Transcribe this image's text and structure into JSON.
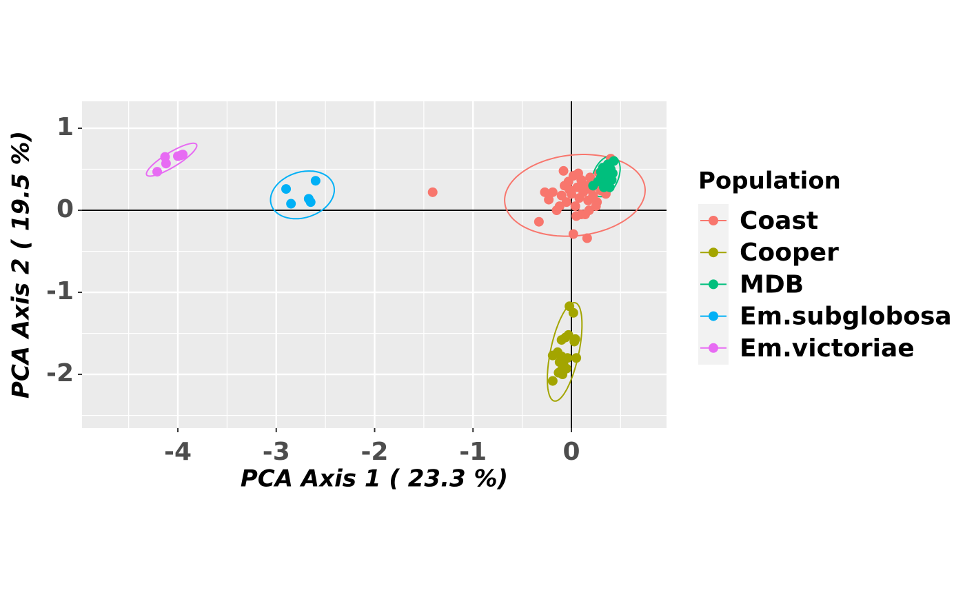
{
  "chart_data": {
    "type": "scatter",
    "x_label": "PCA Axis 1 ( 23.3 %)",
    "y_label": "PCA Axis 2 ( 19.5 %)",
    "legend_title": "Population",
    "xlim": [
      -4.974,
      0.967
    ],
    "ylim": [
      -2.655,
      1.328
    ],
    "xticks": [
      -4,
      -3,
      -2,
      -1,
      0
    ],
    "yticks": [
      -2,
      -1,
      0,
      1
    ],
    "grid": true,
    "series": [
      {
        "name": "Coast",
        "color": "#f8766d",
        "x": [
          -1.41,
          -0.33,
          0.02,
          0.16,
          -0.08,
          -0.27,
          -0.23,
          -0.19,
          -0.12,
          -0.1,
          -0.07,
          -0.05,
          -0.03,
          0,
          0.02,
          0.04,
          0.06,
          0.08,
          0.1,
          0.12,
          0.14,
          0.15,
          0.17,
          0.19,
          0.2,
          0.22,
          0.24,
          0.26,
          0.28,
          0.3,
          0.32,
          0.25,
          0.1,
          -0.15,
          0.05,
          0.35,
          0.4,
          -0.02,
          0.07,
          0.18
        ],
        "y": [
          0.22,
          -0.14,
          -0.29,
          -0.34,
          0.48,
          0.22,
          0.13,
          0.22,
          0.05,
          0.18,
          0.3,
          0.1,
          0.35,
          0.2,
          0.42,
          0.05,
          0.28,
          0.15,
          0.37,
          0.22,
          -0.05,
          0.3,
          0.12,
          0.4,
          0.25,
          0.18,
          0.33,
          0.1,
          0.45,
          0.24,
          0.35,
          0.05,
          -0.05,
          0.0,
          -0.07,
          0.2,
          0.63,
          0.25,
          0.45,
          0.0
        ]
      },
      {
        "name": "Cooper",
        "color": "#a3a500",
        "x": [
          -0.02,
          0.02,
          -0.1,
          -0.06,
          -0.03,
          0.03,
          0.04,
          -0.19,
          -0.14,
          -0.1,
          -0.12,
          -0.08,
          -0.05,
          -0.13,
          -0.09,
          -0.19,
          -0.04,
          0.05,
          -0.1
        ],
        "y": [
          -1.17,
          -1.25,
          -1.58,
          -1.55,
          -1.52,
          -1.6,
          -1.57,
          -1.77,
          -1.73,
          -1.78,
          -1.85,
          -1.88,
          -1.93,
          -1.98,
          -2.0,
          -2.08,
          -1.8,
          -1.8,
          -1.95
        ]
      },
      {
        "name": "MDB",
        "color": "#00bf7d",
        "x": [
          0.22,
          0.27,
          0.3,
          0.32,
          0.35,
          0.33,
          0.38,
          0.4,
          0.42,
          0.37,
          0.43,
          0.39,
          0.3,
          0.41,
          0.35
        ],
        "y": [
          0.3,
          0.35,
          0.4,
          0.52,
          0.38,
          0.28,
          0.32,
          0.5,
          0.45,
          0.56,
          0.6,
          0.28,
          0.47,
          0.37,
          0.45
        ]
      },
      {
        "name": "Em.subglobosa",
        "color": "#00b0f6",
        "x": [
          -2.9,
          -2.85,
          -2.67,
          -2.65,
          -2.6
        ],
        "y": [
          0.26,
          0.08,
          0.14,
          0.1,
          0.36
        ]
      },
      {
        "name": "Em.victoriae",
        "color": "#e76bf3",
        "x": [
          -4.21,
          -4.13,
          -4.12,
          -4.0,
          -3.95,
          -3.97
        ],
        "y": [
          0.47,
          0.65,
          0.57,
          0.66,
          0.68,
          0.67
        ]
      }
    ]
  }
}
